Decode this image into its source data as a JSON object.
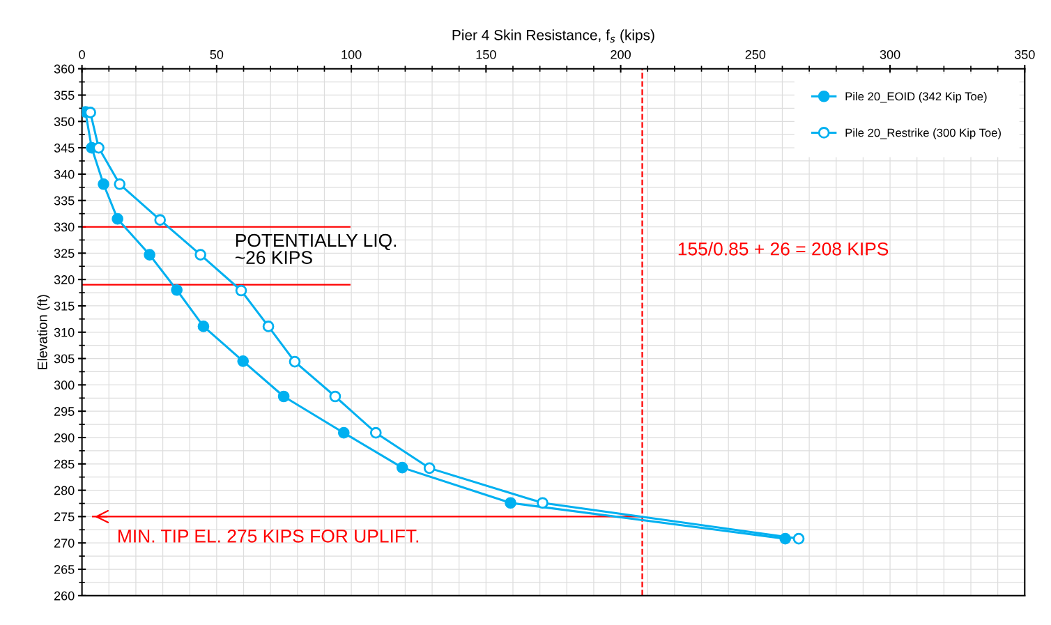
{
  "chart_data": {
    "type": "line",
    "xlabel": "Pier 4 Skin Resistance, f$_{s}$ (kips)",
    "ylabel": "Elevation (ft)",
    "xlim": [
      0,
      350
    ],
    "xticks": [
      0,
      50,
      100,
      150,
      200,
      250,
      300,
      350
    ],
    "ylim": [
      260,
      360
    ],
    "yticks": [
      260,
      265,
      270,
      275,
      280,
      285,
      290,
      295,
      300,
      305,
      310,
      315,
      320,
      325,
      330,
      335,
      340,
      345,
      350,
      355,
      360
    ],
    "grid": true,
    "legend": "top right",
    "marker": "circle",
    "line_style": "solid",
    "series": [
      {
        "name": "Pile 20_EOID (342 Kip Toe)",
        "color": "#00b0f0",
        "x": [
          1.3,
          3.6,
          8.0,
          13.2,
          25.1,
          35.2,
          45.1,
          59.8,
          74.9,
          97.2,
          118.9,
          159.1,
          261.1
        ],
        "values": [
          351.8,
          345.0,
          338.1,
          331.5,
          324.7,
          318.0,
          311.1,
          304.5,
          297.8,
          290.9,
          284.3,
          277.6,
          270.8
        ]
      },
      {
        "name": "Pile 20_Restrike (300 Kip Toe)",
        "color": "#00b0f0",
        "x": [
          3.1,
          6.2,
          14.0,
          29.0,
          44.0,
          59.1,
          69.2,
          79.0,
          94.0,
          109.1,
          129.0,
          171.0,
          266.1
        ],
        "values": [
          351.7,
          345.0,
          338.1,
          331.3,
          324.7,
          317.9,
          311.1,
          304.4,
          297.8,
          290.9,
          284.2,
          277.6,
          270.8
        ]
      }
    ],
    "ref_lines": [
      {
        "axis": "x",
        "value": 208,
        "label": "155/0.85 + 26 = 208 KIPS",
        "color": "#ff0000",
        "line_style": "dashed"
      },
      {
        "axis": "y",
        "value": 275,
        "label": "MIN. TIP EL. 275 KIPS FOR UPLIFT.",
        "color": "#ff0000",
        "line_style": "solid"
      },
      {
        "axis": "y",
        "value": 330,
        "label": null,
        "color": "#ff0000",
        "line_style": "solid"
      },
      {
        "axis": "y",
        "value": 319,
        "label": null,
        "color": "#ff0000",
        "line_style": "solid"
      }
    ],
    "annotations": [
      "POTENTIALLY LIQ.\n~26 KIPS"
    ]
  }
}
